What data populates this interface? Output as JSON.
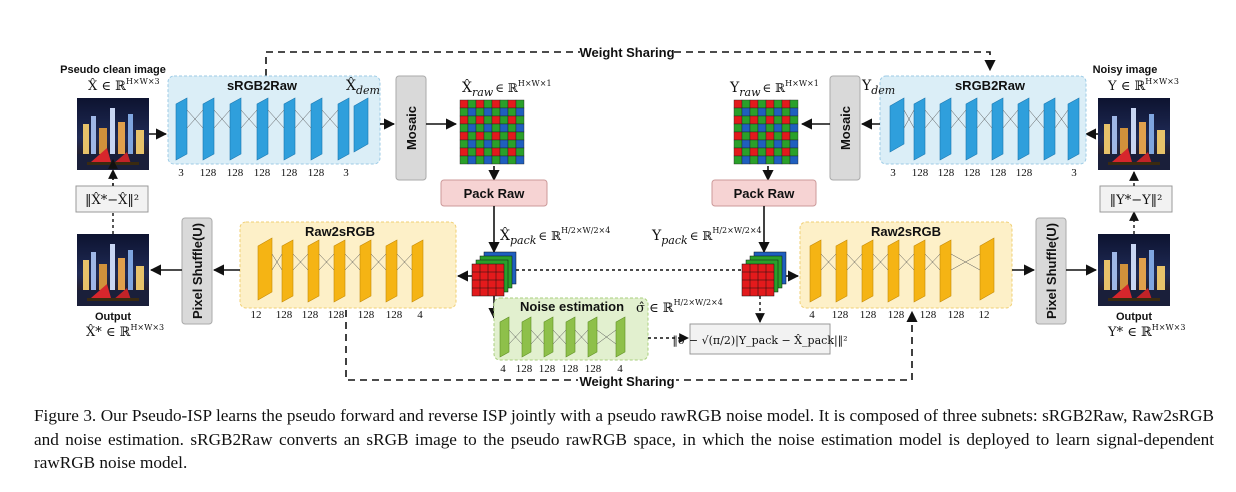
{
  "labels": {
    "pseudo_clean_image": "Pseudo clean image",
    "noisy_image": "Noisy image",
    "output": "Output",
    "weight_sharing": "Weight Sharing",
    "srgb2raw": "sRGB2Raw",
    "raw2srgb": "Raw2sRGB",
    "mosaic": "Mosaic",
    "pack_raw": "Pack Raw",
    "pixel_shuffle": "Pixel Shuffle(U)",
    "noise_estimation": "Noise estimation"
  },
  "math": {
    "x_hat": "X̂ ∈ ℝ",
    "x_hat_sup": "H×W×3",
    "y_in": "Y ∈ ℝ",
    "y_in_sup": "H×W×3",
    "x_dem": "X̂",
    "x_dem_sub": "dem",
    "y_dem": "Y",
    "y_dem_sub": "dem",
    "x_raw": "X̂",
    "x_raw_sub": "raw",
    "x_raw_set": "∈ ℝ",
    "x_raw_sup": "H×W×1",
    "y_raw": "Y",
    "y_raw_sub": "raw",
    "y_raw_set": "∈ ℝ",
    "y_raw_sup": "H×W×1",
    "x_pack": "X̂",
    "x_pack_sub": "pack",
    "x_pack_set": "∈ ℝ",
    "x_pack_sup": "H/2×W/2×4",
    "y_pack": "Y",
    "y_pack_sub": "pack",
    "y_pack_set": "∈ ℝ",
    "y_pack_sup": "H/2×W/2×4",
    "sigma": "σ̂ ∈ ℝ",
    "sigma_sup": "H/2×W/2×4",
    "x_star": "X̂* ∈ ℝ",
    "x_star_sup": "H×W×3",
    "y_star": "Y* ∈ ℝ",
    "y_star_sup": "H×W×3",
    "loss_left": "‖X̂*−X̂‖²",
    "loss_right": "‖Y*−Y‖²",
    "loss_noise": "‖σ̂ − √(π/2)|Y_pack − X̂_pack|‖²"
  },
  "channels": {
    "srgb2raw_left": [
      "3",
      "128",
      "128",
      "128",
      "128",
      "128",
      "3"
    ],
    "srgb2raw_right": [
      "3",
      "128",
      "128",
      "128",
      "128",
      "128",
      "3"
    ],
    "raw2srgb_left": [
      "12",
      "128",
      "128",
      "128",
      "128",
      "128",
      "4"
    ],
    "raw2srgb_right": [
      "4",
      "128",
      "128",
      "128",
      "128",
      "128",
      "12"
    ],
    "noise": [
      "4",
      "128",
      "128",
      "128",
      "128",
      "4"
    ]
  },
  "caption": "Figure 3. Our Pseudo-ISP learns the pseudo forward and reverse ISP jointly with a pseudo rawRGB noise model. It is composed of three subnets: sRGB2Raw, Raw2sRGB and noise estimation. sRGB2Raw converts an sRGB image to the pseudo rawRGB space, in which the noise estimation model is deployed to learn signal-dependent rawRGB noise model.",
  "colors": {
    "srgb2raw_box": "#dbeef7",
    "srgb2raw_layer": "#2f9fdc",
    "raw2srgb_box": "#fdf0c8",
    "raw2srgb_layer": "#f5b414",
    "noise_box": "#e2f0cf",
    "noise_layer": "#8ec04a",
    "gray_box": "#d9d9d9",
    "pack_raw_box": "#f6d3d3"
  }
}
